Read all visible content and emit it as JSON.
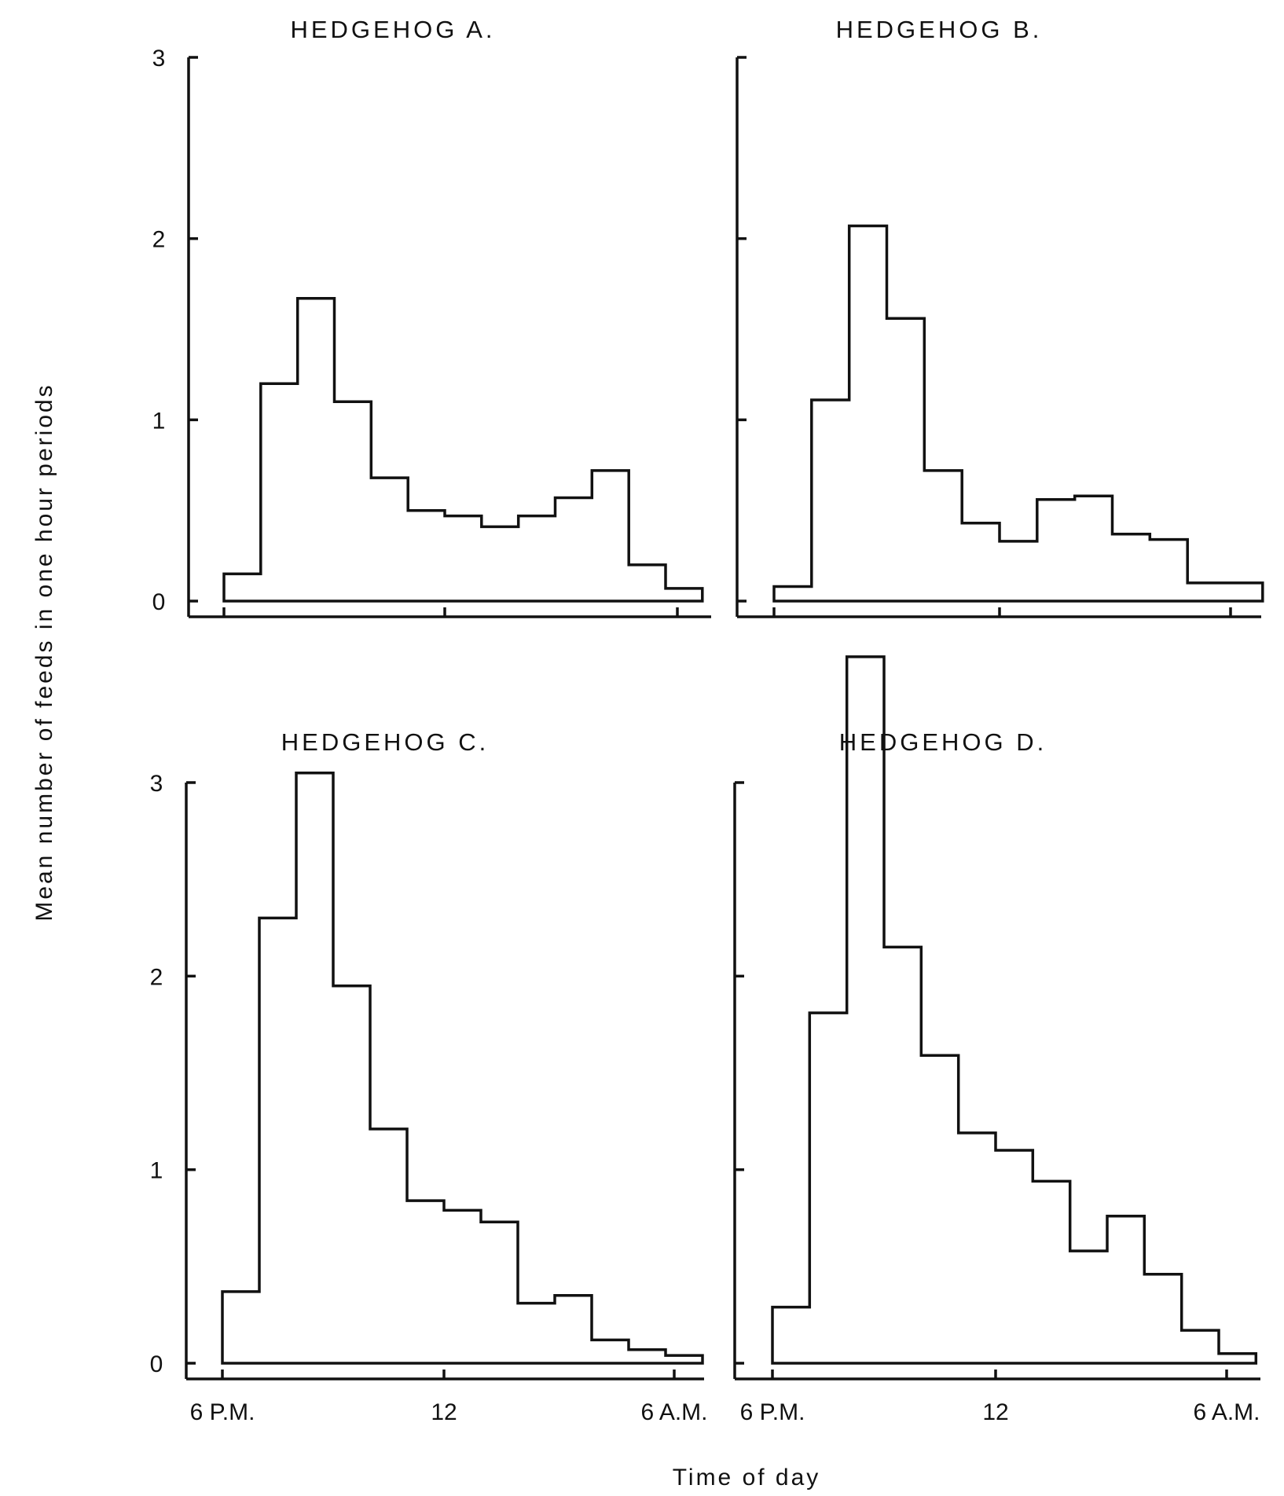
{
  "chart_data": [
    {
      "type": "bar",
      "title": "HEDGEHOG  A.",
      "x_tick_labels": [],
      "y_tick_labels": [
        "0",
        "1",
        "2",
        "3"
      ],
      "ylim": [
        0,
        3
      ],
      "bins_per_tick": 6,
      "values": [
        0.15,
        1.2,
        1.67,
        1.1,
        0.68,
        0.5,
        0.47,
        0.41,
        0.47,
        0.57,
        0.72,
        0.2,
        0.07
      ]
    },
    {
      "type": "bar",
      "title": "HEDGEHOG  B.",
      "x_tick_labels": [],
      "y_tick_labels": [],
      "ylim": [
        0,
        3
      ],
      "bins_per_tick": 6,
      "values": [
        0.08,
        1.11,
        2.07,
        1.56,
        0.72,
        0.43,
        0.33,
        0.56,
        0.58,
        0.37,
        0.34,
        0.1,
        0.1
      ]
    },
    {
      "type": "bar",
      "title": "HEDGEHOG  C.",
      "x_tick_labels": [
        "6 P.M.",
        "12",
        "6 A.M."
      ],
      "y_tick_labels": [
        "0",
        "1",
        "2",
        "3"
      ],
      "ylim": [
        0,
        3
      ],
      "bins_per_tick": 6,
      "values": [
        0.37,
        2.3,
        3.05,
        1.95,
        1.21,
        0.84,
        0.79,
        0.73,
        0.31,
        0.35,
        0.12,
        0.07,
        0.04
      ]
    },
    {
      "type": "bar",
      "title": "HEDGEHOG  D.",
      "x_tick_labels": [
        "6 P.M.",
        "12",
        "6 A.M."
      ],
      "y_tick_labels": [],
      "ylim": [
        0,
        3
      ],
      "bins_per_tick": 6,
      "values": [
        0.29,
        1.81,
        3.65,
        2.15,
        1.59,
        1.19,
        1.1,
        0.94,
        0.58,
        0.76,
        0.46,
        0.17,
        0.05
      ]
    }
  ],
  "axes": {
    "ylabel": "Mean number of feeds in one hour periods",
    "xlabel": "Time of day"
  }
}
